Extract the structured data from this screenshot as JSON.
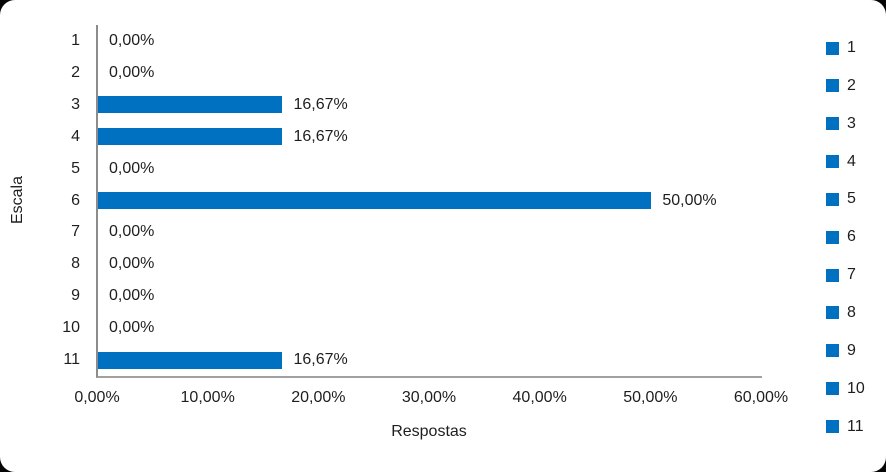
{
  "chart_data": {
    "type": "bar",
    "orientation": "horizontal",
    "title": "",
    "xlabel": "Respostas",
    "ylabel": "Escala",
    "categories": [
      "1",
      "2",
      "3",
      "4",
      "5",
      "6",
      "7",
      "8",
      "9",
      "10",
      "11"
    ],
    "values": [
      0,
      0,
      16.67,
      16.67,
      0,
      50,
      0,
      0,
      0,
      0,
      16.67
    ],
    "value_labels": [
      "0,00%",
      "0,00%",
      "16,67%",
      "16,67%",
      "0,00%",
      "50,00%",
      "0,00%",
      "0,00%",
      "0,00%",
      "0,00%",
      "16,67%"
    ],
    "x_ticks": [
      "0,00%",
      "10,00%",
      "20,00%",
      "30,00%",
      "40,00%",
      "50,00%",
      "60,00%"
    ],
    "xlim": [
      0,
      60
    ],
    "grid": false,
    "legend": [
      "1",
      "2",
      "3",
      "4",
      "5",
      "6",
      "7",
      "8",
      "9",
      "10",
      "11"
    ],
    "legend_position": "right",
    "bar_color": "#0070C0",
    "axis_color": "#8c8c8c"
  }
}
